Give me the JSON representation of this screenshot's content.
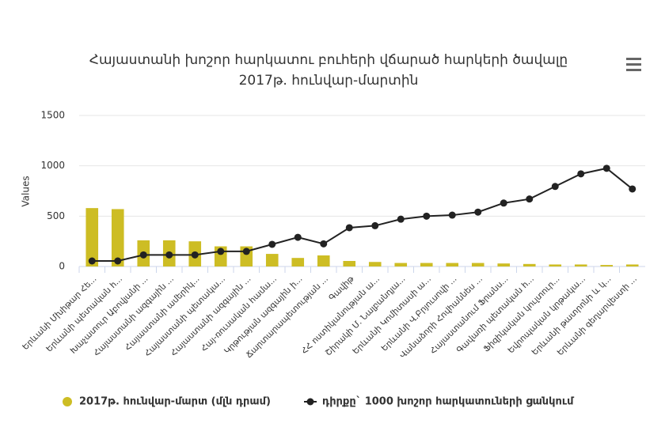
{
  "chart_data": {
    "type": "bar_line",
    "title": "Հայաստանի խոշոր հարկատու բուհերի վճարած հարկերի ծավալը",
    "subtitle": "2017թ. հունվար-մարտին",
    "y_label": "Values",
    "categories": [
      "Երևանի Մխիթար Հե...",
      "Երևանի պետական հ...",
      "Խաչատուր Աբովյանի ...",
      "Հայաստանի ազգային ...",
      "Հայաստանի ամերիկ...",
      "Հայաստանի պետակա...",
      "Հայաստանի ազգային ...",
      "Հայ-ռուսական համա...",
      "Կրթության ազգային ի...",
      "Ճարտարապետության ...",
      "Գավիթ",
      "ՀՀ ոստիկանության ա...",
      "Շիրակի Մ. Նալբանդյա...",
      "Երևանի Կոմիտասի ա...",
      "Երևանի Վ.Բրյուսովի ...",
      "Վանաձորի Հովհաննես ...",
      "Հայաստանում Ֆրանս...",
      "Գավառի պետական հ...",
      "Ֆիզիկական կուլտուր...",
      "Եվրոպական կրթակա...",
      "Երևանի թատրոնի և կ...",
      "Երևանի գեղարվեստի ..."
    ],
    "series": [
      {
        "name": "2017թ. հունվար-մարտ (մլն դրամ)",
        "kind": "bar",
        "color": "#cdbd24",
        "values": [
          580,
          570,
          260,
          260,
          250,
          200,
          200,
          125,
          85,
          110,
          55,
          45,
          35,
          35,
          35,
          35,
          30,
          25,
          20,
          20,
          15,
          20
        ]
      },
      {
        "name": "դիրքը` 1000 խոշոր հարկատուների ցանկում",
        "kind": "line",
        "color": "#222222",
        "values": [
          55,
          55,
          115,
          115,
          115,
          150,
          150,
          220,
          290,
          225,
          385,
          405,
          470,
          500,
          510,
          540,
          630,
          670,
          795,
          920,
          975,
          770
        ]
      }
    ],
    "ylim": [
      0,
      1500
    ],
    "yticks": [
      0,
      500,
      1000,
      1500
    ],
    "grid": true
  }
}
